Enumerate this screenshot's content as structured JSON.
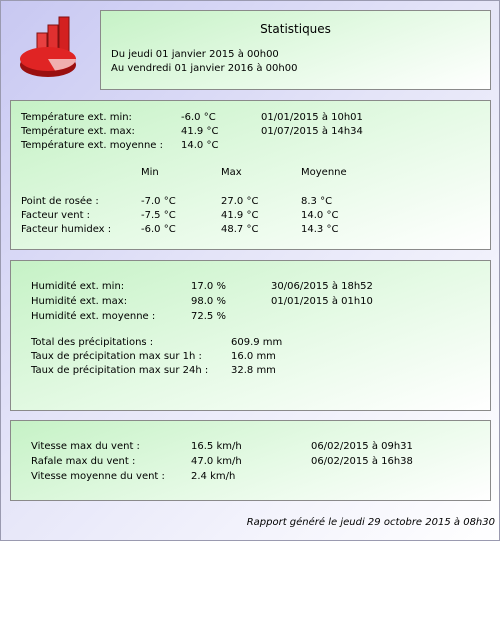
{
  "header": {
    "title": "Statistiques",
    "lines": [
      "Du jeudi 01 janvier 2015 à 00h00",
      "Au vendredi 01 janvier 2016 à 00h00"
    ]
  },
  "temperature": {
    "rows": [
      [
        "Température ext. min:",
        "-6.0 °C",
        "01/01/2015 à 10h01"
      ],
      [
        "Température ext. max:",
        "41.9 °C",
        "01/07/2015 à 14h34"
      ],
      [
        "Température ext. moyenne :",
        "14.0 °C"
      ]
    ],
    "columns": [
      "Min",
      "Max",
      "Moyenne"
    ],
    "derived": [
      [
        "Point de rosée :",
        "-7.0 °C",
        "27.0 °C",
        "8.3 °C"
      ],
      [
        "Facteur vent :",
        "-7.5 °C",
        "41.9 °C",
        "14.0 °C"
      ],
      [
        "Facteur humidex :",
        "-6.0 °C",
        "48.7 °C",
        "14.3 °C"
      ]
    ]
  },
  "humidity": {
    "rows": [
      [
        "Humidité ext. min:",
        "17.0 %",
        "30/06/2015 à 18h52"
      ],
      [
        "Humidité ext. max:",
        "98.0 %",
        "01/01/2015 à 01h10"
      ],
      [
        "Humidité ext. moyenne :",
        "72.5 %"
      ]
    ],
    "rain": [
      [
        "Total des précipitations :",
        "609.9 mm"
      ],
      [
        "Taux de précipitation max sur 1h :",
        "16.0 mm"
      ],
      [
        "Taux de précipitation max sur 24h :",
        "32.8 mm"
      ]
    ]
  },
  "wind": {
    "rows": [
      [
        "Vitesse max du vent :",
        "16.5 km/h",
        "06/02/2015 à 09h31"
      ],
      [
        "Rafale max du vent :",
        "47.0 km/h",
        "06/02/2015 à 16h38"
      ],
      [
        "Vitesse moyenne du vent :",
        "2.4 km/h"
      ]
    ]
  },
  "footer": "Rapport généré le jeudi 29 octobre 2015 à 08h30"
}
